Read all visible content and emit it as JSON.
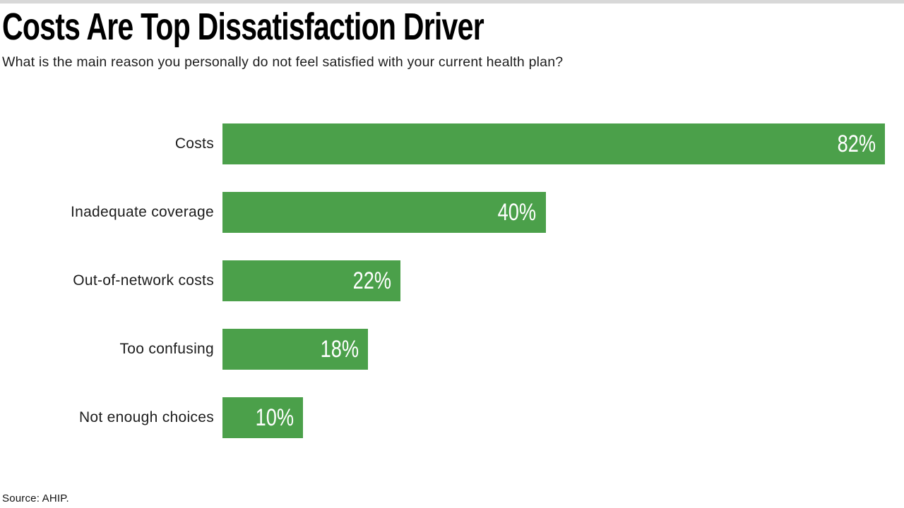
{
  "header": {
    "title": "Costs Are Top Dissatisfaction Driver",
    "subtitle": "What is the main reason you personally do not feel satisfied with your current health plan?"
  },
  "footer": {
    "source": "Source: AHIP."
  },
  "colors": {
    "bar": "#4ba04a",
    "top_strip": "#d8d8d8",
    "value_label_text": "#ffffff",
    "title_text": "#000000",
    "body_text": "#1c1c1c"
  },
  "chart_data": {
    "type": "bar",
    "orientation": "horizontal",
    "title": "Costs Are Top Dissatisfaction Driver",
    "subtitle": "What is the main reason you personally do not feel satisfied with your current health plan?",
    "xlabel": "",
    "ylabel": "",
    "categories": [
      "Costs",
      "Inadequate coverage",
      "Out-of-network costs",
      "Too confusing",
      "Not enough choices"
    ],
    "values": [
      82,
      40,
      22,
      18,
      10
    ],
    "value_labels": [
      "82%",
      "40%",
      "22%",
      "18%",
      "10%"
    ],
    "xlim": [
      0,
      82
    ],
    "grid": false,
    "legend": false,
    "value_label_position": "inside-end",
    "source": "Source: AHIP."
  }
}
